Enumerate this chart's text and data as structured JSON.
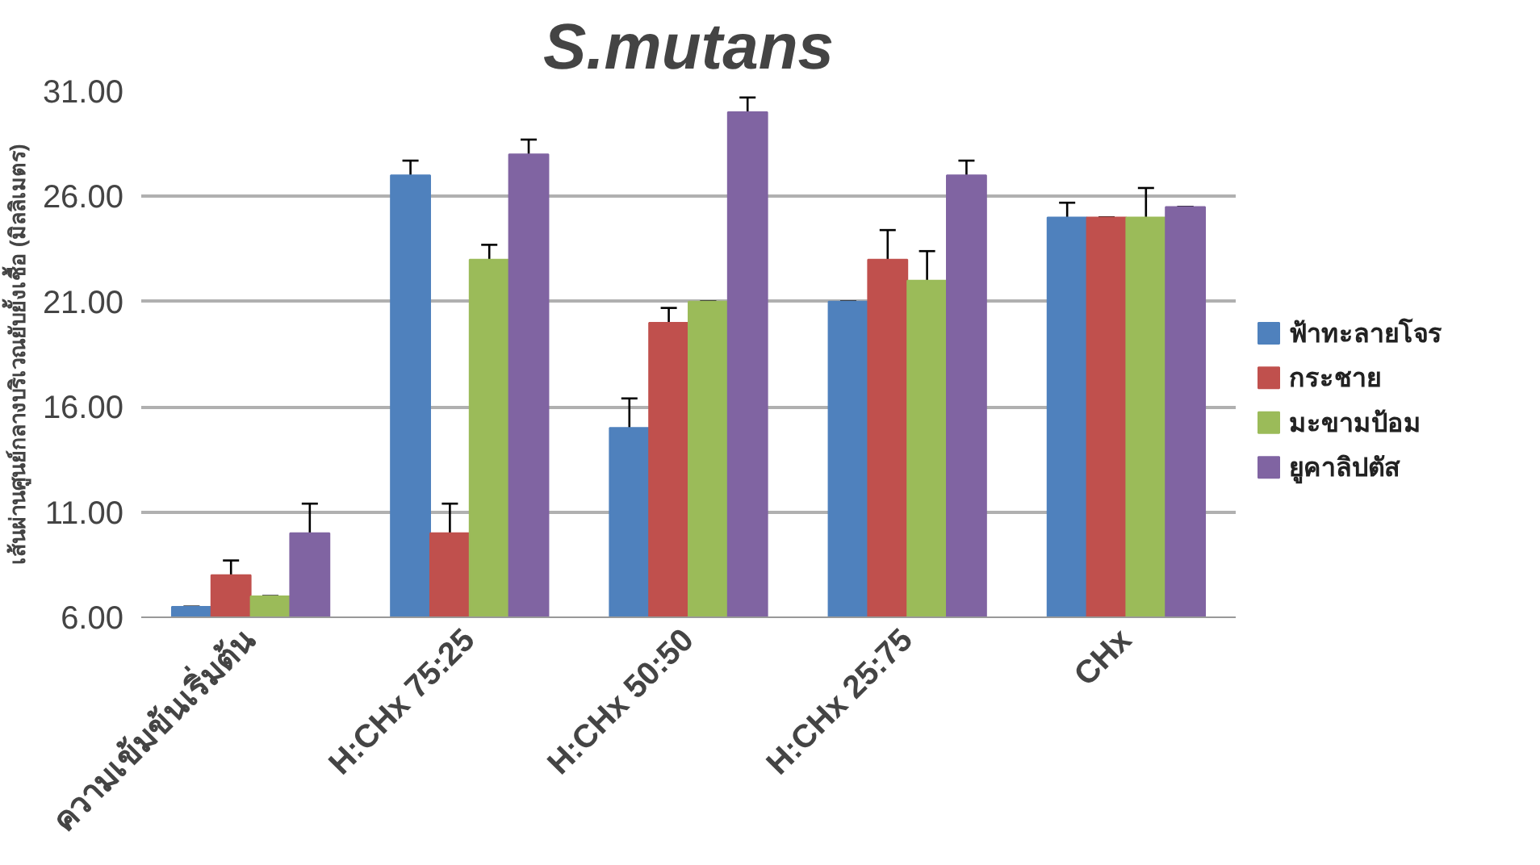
{
  "chart_data": {
    "type": "bar",
    "title": "S.mutans",
    "ylabel": "เส้นผ่านศูนย์กลางบริเวณยับยั้งเชื้อ (มิลลิเมตร)",
    "categories": [
      "ความเข้มข้นเริ่มต้น",
      "H:CHx 75:25",
      "H:CHx 50:50",
      "H:CHx 25:75",
      "CHx"
    ],
    "series": [
      {
        "name": "ฟ้าทะลายโจร",
        "color": "#4f81bd",
        "values": [
          6.5,
          27,
          15,
          21,
          25
        ],
        "errors": [
          0,
          0.7,
          1.4,
          0,
          0.7
        ]
      },
      {
        "name": "กระชาย",
        "color": "#c0504d",
        "values": [
          8,
          10,
          20,
          23,
          25
        ],
        "errors": [
          0.7,
          1.4,
          0.7,
          1.4,
          0
        ]
      },
      {
        "name": "มะขามป้อม",
        "color": "#9bbb59",
        "values": [
          7,
          23,
          21,
          22,
          25
        ],
        "errors": [
          0,
          0.7,
          0,
          1.4,
          1.4
        ]
      },
      {
        "name": "ยูคาลิปตัส",
        "color": "#8064a2",
        "values": [
          10,
          28,
          30,
          27,
          25.5
        ],
        "errors": [
          1.4,
          0.7,
          0.7,
          0.7,
          0
        ]
      }
    ],
    "ylim": [
      6,
      31
    ],
    "yticks": [
      {
        "value": 6,
        "label": "6.00"
      },
      {
        "value": 11,
        "label": "11.00"
      },
      {
        "value": 16,
        "label": "16.00"
      },
      {
        "value": 21,
        "label": "21.00"
      },
      {
        "value": 26,
        "label": "26.00"
      },
      {
        "value": 31,
        "label": "31.00"
      }
    ],
    "grid": "y",
    "legend": "right"
  }
}
